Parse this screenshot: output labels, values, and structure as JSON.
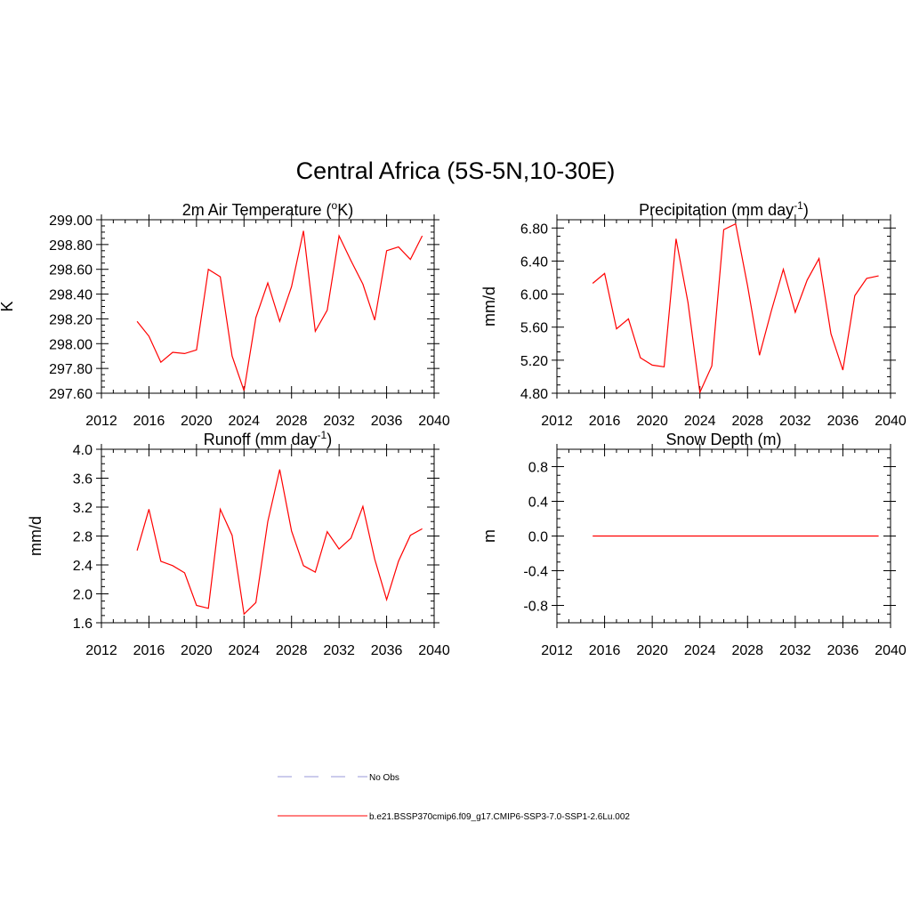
{
  "title": "Central Africa (5S-5N,10-30E)",
  "colors": {
    "series": "#ff0000",
    "no_obs": "#9a9ad8",
    "axis": "#000000"
  },
  "legend": {
    "items": [
      {
        "label": "No Obs",
        "style": "dashed"
      },
      {
        "label": "b.e21.BSSP370cmip6.f09_g17.CMIP6-SSP3-7.0-SSP1-2.6Lu.002",
        "style": "solid"
      }
    ]
  },
  "chart_data": [
    {
      "type": "line",
      "title": "2m Air Temperature (",
      "title_sup": "o",
      "title_post": "K)",
      "ylabel": "K",
      "xlim": [
        2012,
        2040
      ],
      "ylim": [
        297.6,
        299.0
      ],
      "xticks": [
        2012,
        2016,
        2020,
        2024,
        2028,
        2032,
        2036,
        2040
      ],
      "yticks": [
        "297.60",
        "297.80",
        "298.00",
        "298.20",
        "298.40",
        "298.60",
        "298.80",
        "299.00"
      ],
      "x": [
        2015,
        2016,
        2017,
        2018,
        2019,
        2020,
        2021,
        2022,
        2023,
        2024,
        2025,
        2026,
        2027,
        2028,
        2029,
        2030,
        2031,
        2032,
        2033,
        2034,
        2035,
        2036,
        2037,
        2038,
        2039
      ],
      "values": [
        298.18,
        298.06,
        297.85,
        297.93,
        297.92,
        297.95,
        298.6,
        298.54,
        297.9,
        297.62,
        298.21,
        298.49,
        298.18,
        298.46,
        298.91,
        298.1,
        298.27,
        298.87,
        298.67,
        298.48,
        298.19,
        298.75,
        298.78,
        298.68,
        298.87
      ]
    },
    {
      "type": "line",
      "title": "Precipitation (mm day",
      "title_sup": "-1",
      "title_post": ")",
      "ylabel": "mm/d",
      "xlim": [
        2012,
        2040
      ],
      "ylim": [
        4.8,
        6.9
      ],
      "xticks": [
        2012,
        2016,
        2020,
        2024,
        2028,
        2032,
        2036,
        2040
      ],
      "yticks": [
        "4.80",
        "5.20",
        "5.60",
        "6.00",
        "6.40",
        "6.80"
      ],
      "x": [
        2015,
        2016,
        2017,
        2018,
        2019,
        2020,
        2021,
        2022,
        2023,
        2024,
        2025,
        2026,
        2027,
        2028,
        2029,
        2030,
        2031,
        2032,
        2033,
        2034,
        2035,
        2036,
        2037,
        2038,
        2039
      ],
      "values": [
        6.13,
        6.25,
        5.58,
        5.7,
        5.23,
        5.14,
        5.12,
        6.67,
        5.9,
        4.81,
        5.13,
        6.78,
        6.85,
        6.1,
        5.26,
        5.8,
        6.3,
        5.78,
        6.17,
        6.43,
        5.52,
        5.08,
        5.98,
        6.19,
        6.22
      ]
    },
    {
      "type": "line",
      "title": "Runoff (mm day",
      "title_sup": "-1",
      "title_post": ")",
      "ylabel": "mm/d",
      "xlim": [
        2012,
        2040
      ],
      "ylim": [
        1.6,
        4.0
      ],
      "xticks": [
        2012,
        2016,
        2020,
        2024,
        2028,
        2032,
        2036,
        2040
      ],
      "yticks": [
        "1.6",
        "2.0",
        "2.4",
        "2.8",
        "3.2",
        "3.6",
        "4.0"
      ],
      "x": [
        2015,
        2016,
        2017,
        2018,
        2019,
        2020,
        2021,
        2022,
        2023,
        2024,
        2025,
        2026,
        2027,
        2028,
        2029,
        2030,
        2031,
        2032,
        2033,
        2034,
        2035,
        2036,
        2037,
        2038,
        2039
      ],
      "values": [
        2.6,
        3.17,
        2.45,
        2.39,
        2.29,
        1.84,
        1.8,
        3.17,
        2.81,
        1.72,
        1.88,
        3.0,
        3.72,
        2.87,
        2.39,
        2.3,
        2.86,
        2.62,
        2.77,
        3.21,
        2.48,
        1.92,
        2.45,
        2.81,
        2.9
      ]
    },
    {
      "type": "line",
      "title": "Snow Depth (m)",
      "title_sup": "",
      "title_post": "",
      "ylabel": "m",
      "xlim": [
        2012,
        2040
      ],
      "ylim": [
        -1.0,
        1.0
      ],
      "xticks": [
        2012,
        2016,
        2020,
        2024,
        2028,
        2032,
        2036,
        2040
      ],
      "yticks": [
        "-0.8",
        "-0.4",
        "0.0",
        "0.4",
        "0.8"
      ],
      "ytick_values": [
        -0.8,
        -0.4,
        0.0,
        0.4,
        0.8
      ],
      "x": [
        2015,
        2039
      ],
      "values": [
        0.0,
        0.0
      ]
    }
  ]
}
